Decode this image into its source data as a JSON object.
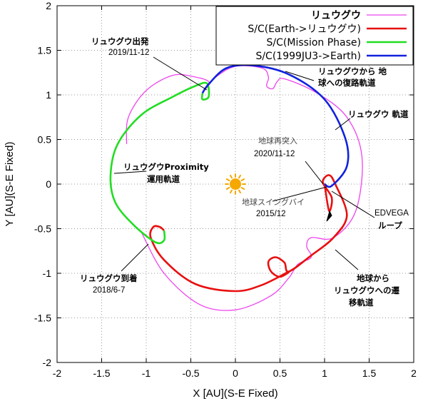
{
  "chart_data": {
    "type": "line",
    "title": "",
    "xlabel": "X [AU](S-E Fixed)",
    "ylabel": "Y [AU](S-E Fixed)",
    "xlim": [
      -2,
      2
    ],
    "ylim": [
      -2,
      2
    ],
    "xticks": [
      "-2",
      "-1.5",
      "-1",
      "-0.5",
      "0",
      "0.5",
      "1",
      "1.5",
      "2"
    ],
    "yticks": [
      "2",
      "1.5",
      "1",
      "0.5",
      "0",
      "-0.5",
      "-1",
      "-1.5",
      "-2"
    ],
    "grid": true,
    "legend_position": "top-right",
    "sun": {
      "x": 0,
      "y": 0,
      "color": "#f5a800"
    },
    "series": [
      {
        "name": "リュウグウ",
        "color": "#ee44ee",
        "points": [
          [
            -1.22,
            0.45
          ],
          [
            -1.2,
            0.75
          ],
          [
            -1.0,
            1.05
          ],
          [
            -0.7,
            1.22
          ],
          [
            -0.45,
            1.2
          ],
          [
            -0.3,
            1.15
          ],
          [
            -0.32,
            1.08
          ],
          [
            -0.22,
            1.2
          ],
          [
            0.0,
            1.32
          ],
          [
            0.3,
            1.3
          ],
          [
            0.37,
            1.2
          ],
          [
            0.35,
            1.1
          ],
          [
            0.42,
            1.07
          ],
          [
            0.47,
            1.15
          ],
          [
            0.55,
            1.18
          ],
          [
            0.9,
            1.03
          ],
          [
            1.25,
            0.75
          ],
          [
            1.42,
            0.3
          ],
          [
            1.35,
            -0.3
          ],
          [
            1.1,
            -0.6
          ],
          [
            0.85,
            -0.6
          ],
          [
            0.8,
            -0.7
          ],
          [
            0.85,
            -0.82
          ],
          [
            0.7,
            -0.9
          ],
          [
            0.6,
            -1.05
          ],
          [
            0.4,
            -1.25
          ],
          [
            0.0,
            -1.41
          ],
          [
            -0.4,
            -1.35
          ],
          [
            -0.8,
            -1.0
          ],
          [
            -1.05,
            -0.55
          ]
        ]
      },
      {
        "name": "S/C(Earth->リュウグウ)",
        "color": "#e81010",
        "points": [
          [
            1.0,
            0.0
          ],
          [
            1.05,
            -0.3
          ],
          [
            1.08,
            -0.15
          ],
          [
            0.98,
            0.02
          ],
          [
            1.05,
            0.1
          ],
          [
            1.12,
            0.0
          ],
          [
            1.25,
            -0.35
          ],
          [
            1.1,
            -0.6
          ],
          [
            0.85,
            -0.8
          ],
          [
            0.6,
            -0.98
          ],
          [
            0.55,
            -0.88
          ],
          [
            0.45,
            -0.82
          ],
          [
            0.37,
            -0.87
          ],
          [
            0.4,
            -0.98
          ],
          [
            0.5,
            -1.04
          ],
          [
            0.6,
            -0.98
          ],
          [
            0.3,
            -1.13
          ],
          [
            0.0,
            -1.2
          ],
          [
            -0.45,
            -1.12
          ],
          [
            -0.8,
            -0.85
          ],
          [
            -0.95,
            -0.6
          ],
          [
            -0.92,
            -0.48
          ],
          [
            -0.85,
            -0.48
          ],
          [
            -0.8,
            -0.52
          ]
        ]
      },
      {
        "name": "S/C(Mission Phase)",
        "color": "#22dd22",
        "points": [
          [
            -0.8,
            -0.52
          ],
          [
            -0.8,
            -0.63
          ],
          [
            -0.9,
            -0.65
          ],
          [
            -1.15,
            -0.45
          ],
          [
            -1.35,
            -0.2
          ],
          [
            -1.4,
            0.1
          ],
          [
            -1.32,
            0.45
          ],
          [
            -1.05,
            0.78
          ],
          [
            -0.7,
            0.98
          ],
          [
            -0.45,
            1.1
          ],
          [
            -0.32,
            1.13
          ],
          [
            -0.3,
            0.98
          ],
          [
            -0.37,
            0.95
          ],
          [
            -0.37,
            1.02
          ]
        ]
      },
      {
        "name": "S/C(1999JU3->Earth)",
        "color": "#1122dd",
        "points": [
          [
            -0.37,
            1.02
          ],
          [
            -0.3,
            1.12
          ],
          [
            -0.1,
            1.3
          ],
          [
            0.2,
            1.33
          ],
          [
            0.6,
            1.23
          ],
          [
            1.0,
            0.95
          ],
          [
            1.23,
            0.52
          ],
          [
            1.25,
            0.2
          ],
          [
            1.08,
            -0.02
          ],
          [
            1.0,
            0.0
          ]
        ]
      }
    ],
    "annotations": [
      {
        "lines": [
          "リュウグウ出発",
          "2019/11-12"
        ]
      },
      {
        "lines": [
          "リュウグウから 地",
          "球への復路軌道"
        ]
      },
      {
        "lines": [
          "リュウグウ 軌道"
        ]
      },
      {
        "lines": [
          "地球再突入",
          "2020/11-12"
        ]
      },
      {
        "lines": [
          "リュウグウProximity",
          "運用軌道"
        ]
      },
      {
        "lines": [
          "地球スイングバイ",
          "2015/12"
        ]
      },
      {
        "lines": [
          "EDVEGA",
          "ループ"
        ]
      },
      {
        "lines": [
          "リュウグウ到着",
          "2018/6-7"
        ]
      },
      {
        "lines": [
          "地球から",
          "リュウグウへの遷",
          "移軌道"
        ]
      }
    ]
  }
}
